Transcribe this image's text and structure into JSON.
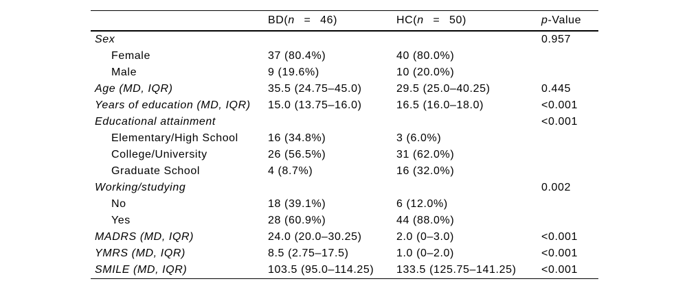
{
  "table": {
    "header": {
      "bd": {
        "pre": "BD(",
        "n": "n",
        "post": "  =  46)"
      },
      "hc": {
        "pre": "HC(",
        "n": "n",
        "post": "  =  50)"
      },
      "p": {
        "italic": "p",
        "rest": "-Value"
      }
    },
    "rows": [
      {
        "label": "Sex",
        "bd": "",
        "hc": "",
        "p": "0.957"
      },
      {
        "label": "Female",
        "bd": "37 (80.4%)",
        "hc": "40 (80.0%)",
        "p": ""
      },
      {
        "label": "Male",
        "bd": "9 (19.6%)",
        "hc": "10 (20.0%)",
        "p": ""
      },
      {
        "label": "Age (MD, IQR)",
        "bd": "35.5 (24.75–45.0)",
        "hc": "29.5 (25.0–40.25)",
        "p": "0.445"
      },
      {
        "label": "Years of education (MD, IQR)",
        "bd": "15.0 (13.75–16.0)",
        "hc": "16.5 (16.0–18.0)",
        "p": "<0.001"
      },
      {
        "label": "Educational attainment",
        "bd": "",
        "hc": "",
        "p": "<0.001"
      },
      {
        "label": "Elementary/High School",
        "bd": "16 (34.8%)",
        "hc": "3 (6.0%)",
        "p": ""
      },
      {
        "label": "College/University",
        "bd": "26 (56.5%)",
        "hc": "31 (62.0%)",
        "p": ""
      },
      {
        "label": "Graduate School",
        "bd": "4 (8.7%)",
        "hc": "16 (32.0%)",
        "p": ""
      },
      {
        "label": "Working/studying",
        "bd": "",
        "hc": "",
        "p": "0.002"
      },
      {
        "label": "No",
        "bd": "18 (39.1%)",
        "hc": "6 (12.0%)",
        "p": ""
      },
      {
        "label": "Yes",
        "bd": "28 (60.9%)",
        "hc": "44 (88.0%)",
        "p": ""
      },
      {
        "label": "MADRS (MD, IQR)",
        "bd": "24.0 (20.0–30.25)",
        "hc": "2.0 (0–3.0)",
        "p": "<0.001"
      },
      {
        "label": "YMRS (MD, IQR)",
        "bd": "8.5 (2.75–17.5)",
        "hc": "1.0 (0–2.0)",
        "p": "<0.001"
      },
      {
        "label": "SMILE (MD, IQR)",
        "bd": "103.5 (95.0–114.25)",
        "hc": "133.5 (125.75–141.25)",
        "p": "<0.001"
      }
    ]
  }
}
